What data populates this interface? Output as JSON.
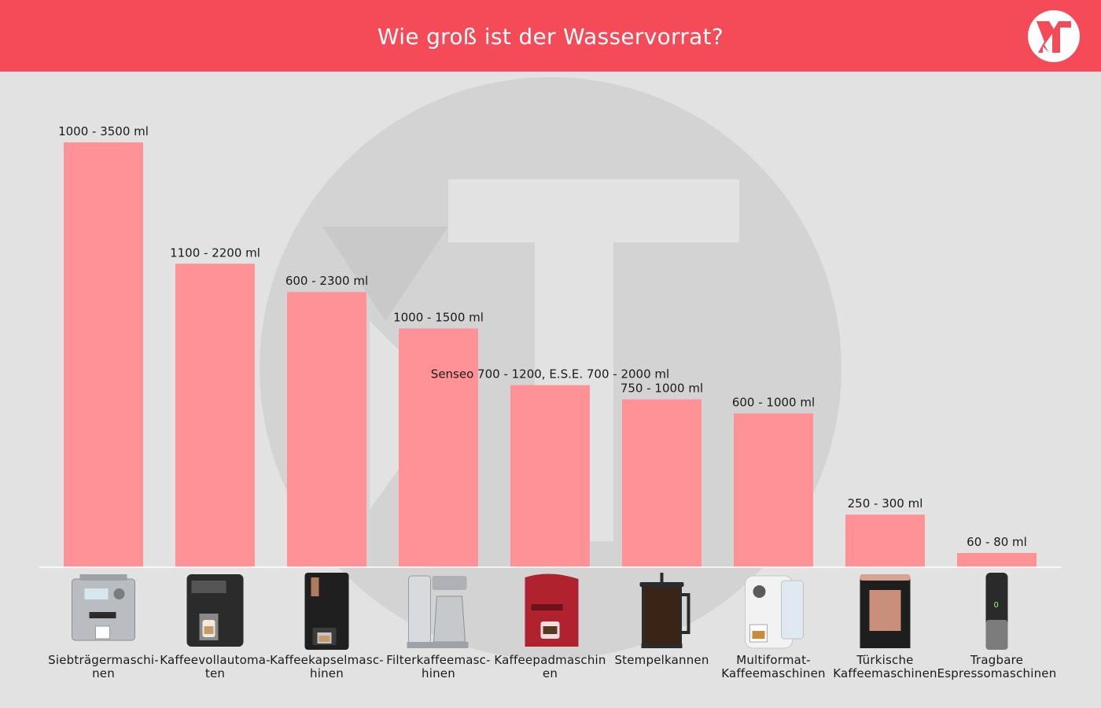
{
  "header": {
    "title": "Wie groß ist der Wasservorrat?"
  },
  "colors": {
    "header_bg": "#f54a57",
    "bar": "#fe9297",
    "background": "#e2e2e2",
    "watermark": "#d0d0d0"
  },
  "chart_data": {
    "type": "bar",
    "title": "Wie groß ist der Wasservorrat?",
    "xlabel": "",
    "ylabel": "",
    "unit": "ml",
    "ylim": [
      0,
      3500
    ],
    "grid": false,
    "legend": "none",
    "categories": [
      [
        "Siebträgermaschi-",
        "nen"
      ],
      [
        "Kaffeevollautoma-",
        "ten"
      ],
      [
        "Kaffeekapselmasc-",
        "hinen"
      ],
      [
        "Filterkaffeemasc-",
        "hinen"
      ],
      [
        "Kaffeepadmaschin",
        "en"
      ],
      [
        "Stempelkannen"
      ],
      [
        "Multiformat-",
        "Kaffeemaschinen"
      ],
      [
        "Türkische",
        "Kaffeemaschinen"
      ],
      [
        "Tragbare",
        "Espressomaschinen"
      ]
    ],
    "values": [
      3500,
      2500,
      2267,
      1967,
      1500,
      1383,
      1267,
      433,
      117
    ],
    "labels": [
      "1000 - 3500 ml",
      "1100 - 2200 ml",
      "600 - 2300 ml",
      "1000 - 1500 ml",
      "Senseo 700 - 1200, E.S.E. 700 - 2000 ml",
      "750 - 1000 ml",
      "600 - 1000 ml",
      "250 - 300 ml",
      "60 - 80 ml"
    ],
    "icons": [
      "espresso-machine-icon",
      "fully-automatic-coffee-machine-icon",
      "capsule-machine-icon",
      "filter-coffee-machine-icon",
      "pad-machine-icon",
      "french-press-icon",
      "multiformat-machine-icon",
      "turkish-coffee-machine-icon",
      "portable-espresso-icon"
    ]
  }
}
